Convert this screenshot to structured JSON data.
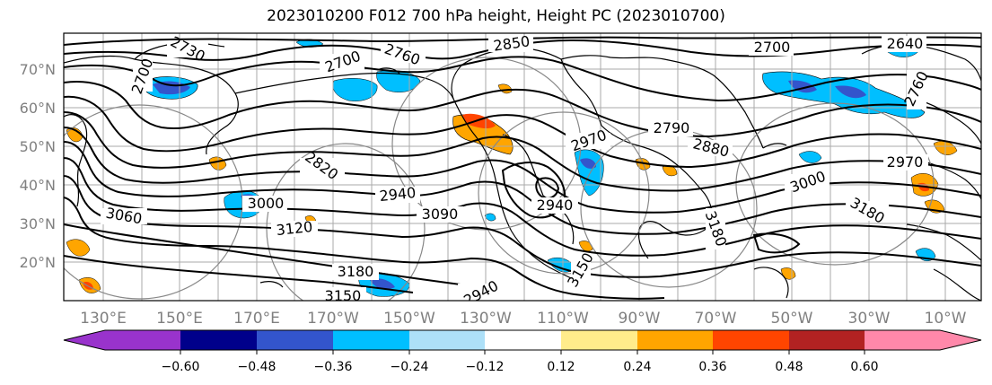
{
  "title": "2023010200 F012 700 hPa height, Height PC (2023010700)",
  "map": {
    "lat_labels": [
      "70°N",
      "60°N",
      "50°N",
      "40°N",
      "30°N",
      "20°N"
    ],
    "lon_labels": [
      "130°E",
      "150°E",
      "170°E",
      "170°W",
      "150°W",
      "130°W",
      "110°W",
      "90°W",
      "70°W",
      "50°W",
      "30°W",
      "10°W"
    ],
    "contour_labels": [
      "2730",
      "2700",
      "2760",
      "2850",
      "2700",
      "2700",
      "2640",
      "2760",
      "2790",
      "2970",
      "2880",
      "2820",
      "2940",
      "3000",
      "3060",
      "3120",
      "3090",
      "2940",
      "3180",
      "3150",
      "3180",
      "3150",
      "3180",
      "3000",
      "2970",
      "2940"
    ]
  },
  "colorbar": {
    "colors": [
      "#9933cc",
      "#00008b",
      "#3355cc",
      "#00bfff",
      "#ade0f8",
      "#ffffff",
      "#ffec8b",
      "#ffa500",
      "#ff4500",
      "#b22222",
      "#ff88aa"
    ],
    "tick_labels": [
      "−0.60",
      "−0.48",
      "−0.36",
      "−0.24",
      "−0.12",
      "0.12",
      "0.24",
      "0.36",
      "0.48",
      "0.60"
    ]
  }
}
